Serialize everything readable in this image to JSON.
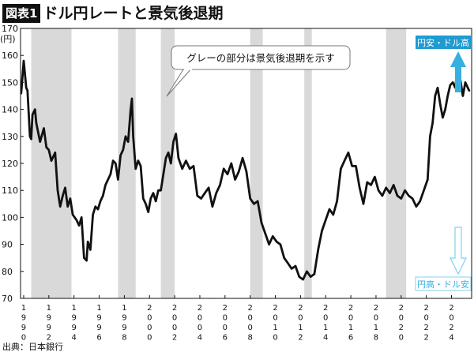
{
  "header": {
    "badge": "図表1",
    "title": "ドル円レートと景気後退期"
  },
  "source": "出典：日本銀行",
  "colors": {
    "line": "#111111",
    "recession": "#d9d9d9",
    "arrow": "#36b0dd",
    "label_strong": "#1f9bd1",
    "label_light": "#7fd1ee"
  },
  "chart_data": {
    "type": "line",
    "title": "ドル円レートと景気後退期",
    "ylabel": "(円)",
    "ylim": [
      70,
      170
    ],
    "yticks": [
      70,
      80,
      90,
      100,
      110,
      120,
      130,
      140,
      150,
      160,
      170
    ],
    "xlim": [
      1989.75,
      2025.6
    ],
    "xticks": [
      "1990",
      "1992",
      "1994",
      "1996",
      "1998",
      "2000",
      "2002",
      "2004",
      "2006",
      "2008",
      "2010",
      "2012",
      "2014",
      "2016",
      "2018",
      "2020",
      "2022",
      "2024"
    ],
    "grid": false,
    "recessions": [
      [
        1990.6,
        1993.8
      ],
      [
        1997.5,
        1998.9
      ],
      [
        2000.9,
        2002.0
      ],
      [
        2008.0,
        2009.0
      ],
      [
        2012.3,
        2012.9
      ],
      [
        2018.8,
        2020.4
      ]
    ],
    "annotation": "グレーの部分は景気後退期を示す",
    "arrow_labels": {
      "up": "円安・ドル高",
      "down": "円高・ドル安"
    },
    "series": [
      {
        "x": [
          1989.8,
          1990.0,
          1990.2,
          1990.3,
          1990.5,
          1990.6,
          1990.7,
          1990.9,
          1991.0,
          1991.3,
          1991.6,
          1991.8,
          1992.0,
          1992.2,
          1992.5,
          1992.7,
          1992.9,
          1993.1,
          1993.3,
          1993.5,
          1993.7,
          1993.9,
          1994.2,
          1994.4,
          1994.6,
          1994.8,
          1995.0,
          1995.1,
          1995.3,
          1995.5,
          1995.7,
          1995.9,
          1996.1,
          1996.3,
          1996.5,
          1996.7,
          1996.9,
          1997.1,
          1997.3,
          1997.5,
          1997.7,
          1997.9,
          1998.1,
          1998.3,
          1998.5,
          1998.6,
          1998.7,
          1998.9,
          1999.1,
          1999.3,
          1999.5,
          1999.7,
          1999.9,
          2000.1,
          2000.3,
          2000.5,
          2000.7,
          2000.9,
          2001.1,
          2001.3,
          2001.5,
          2001.7,
          2001.9,
          2002.1,
          2002.3,
          2002.6,
          2002.9,
          2003.2,
          2003.5,
          2003.8,
          2004.1,
          2004.4,
          2004.7,
          2005.0,
          2005.3,
          2005.6,
          2005.9,
          2006.2,
          2006.5,
          2006.8,
          2007.1,
          2007.4,
          2007.7,
          2008.0,
          2008.3,
          2008.6,
          2008.9,
          2009.2,
          2009.5,
          2009.8,
          2010.1,
          2010.4,
          2010.7,
          2011.0,
          2011.3,
          2011.6,
          2011.9,
          2012.2,
          2012.5,
          2012.8,
          2013.1,
          2013.4,
          2013.7,
          2014.0,
          2014.3,
          2014.6,
          2014.9,
          2015.2,
          2015.5,
          2015.8,
          2016.1,
          2016.4,
          2016.7,
          2017.0,
          2017.3,
          2017.6,
          2017.9,
          2018.2,
          2018.5,
          2018.8,
          2019.1,
          2019.4,
          2019.7,
          2020.0,
          2020.3,
          2020.6,
          2020.9,
          2021.2,
          2021.5,
          2021.8,
          2022.1,
          2022.3,
          2022.5,
          2022.7,
          2022.9,
          2023.1,
          2023.3,
          2023.5,
          2023.7,
          2023.9,
          2024.1,
          2024.3,
          2024.5,
          2024.7,
          2024.9,
          2025.1,
          2025.4
        ],
        "values": [
          146,
          158,
          148,
          147,
          130,
          129,
          138,
          140,
          135,
          128,
          133,
          126,
          125,
          121,
          124,
          110,
          104,
          108,
          111,
          104,
          107,
          101,
          99,
          97,
          100,
          85,
          84,
          91,
          88,
          101,
          104,
          103,
          106,
          108,
          112,
          114,
          116,
          121,
          120,
          114,
          123,
          125,
          130,
          128,
          140,
          144,
          130,
          118,
          121,
          119,
          107,
          105,
          102,
          107,
          109,
          106,
          110,
          110,
          116,
          122,
          124,
          120,
          128,
          131,
          122,
          118,
          121,
          118,
          119,
          108,
          107,
          109,
          111,
          104,
          109,
          112,
          118,
          116,
          120,
          114,
          117,
          122,
          117,
          107,
          105,
          106,
          98,
          94,
          90,
          93,
          91,
          90,
          85,
          83,
          81,
          82,
          78,
          77,
          80,
          78,
          79,
          88,
          95,
          99,
          103,
          101,
          106,
          118,
          121,
          124,
          119,
          119,
          111,
          105,
          113,
          112,
          115,
          110,
          108,
          111,
          109,
          112,
          108,
          107,
          110,
          108,
          107,
          104,
          106,
          110,
          114,
          130,
          135,
          145,
          148,
          142,
          137,
          140,
          145,
          149,
          150,
          148,
          156,
          151,
          145,
          150,
          147
        ]
      }
    ]
  }
}
